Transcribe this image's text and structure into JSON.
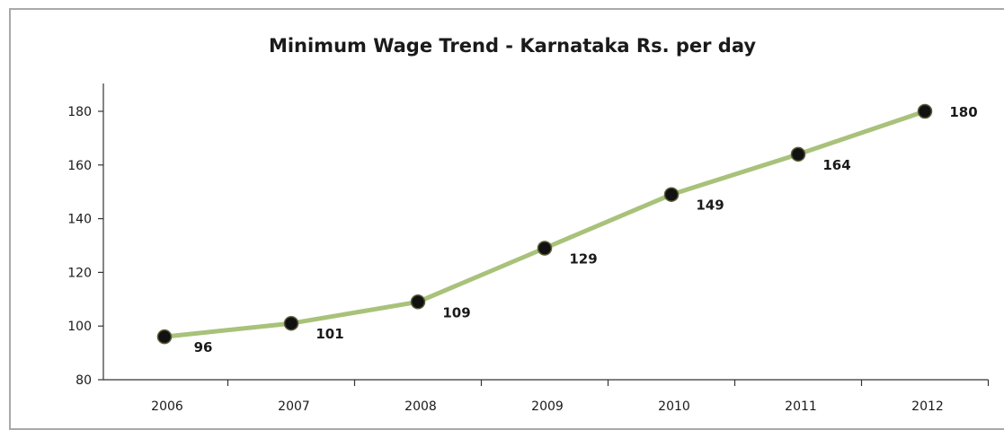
{
  "chart_data": {
    "type": "line",
    "title": "Minimum Wage Trend - Karnataka Rs. per day",
    "xlabel": "",
    "ylabel": "",
    "categories": [
      "2006",
      "2007",
      "2008",
      "2009",
      "2010",
      "2011",
      "2012"
    ],
    "series": [
      {
        "values": [
          96,
          101,
          109,
          129,
          149,
          164,
          180
        ]
      }
    ],
    "data_labels": [
      "96",
      "101",
      "109",
      "129",
      "149",
      "164",
      "180"
    ],
    "ylim": [
      80,
      190
    ],
    "yticks": [
      80,
      100,
      120,
      140,
      160,
      180
    ],
    "ytick_labels": [
      "80",
      "100",
      "120",
      "140",
      "160",
      "180"
    ],
    "grid": false,
    "legend": "none",
    "line_color": "#a8c27a",
    "marker_color": "#111111"
  }
}
